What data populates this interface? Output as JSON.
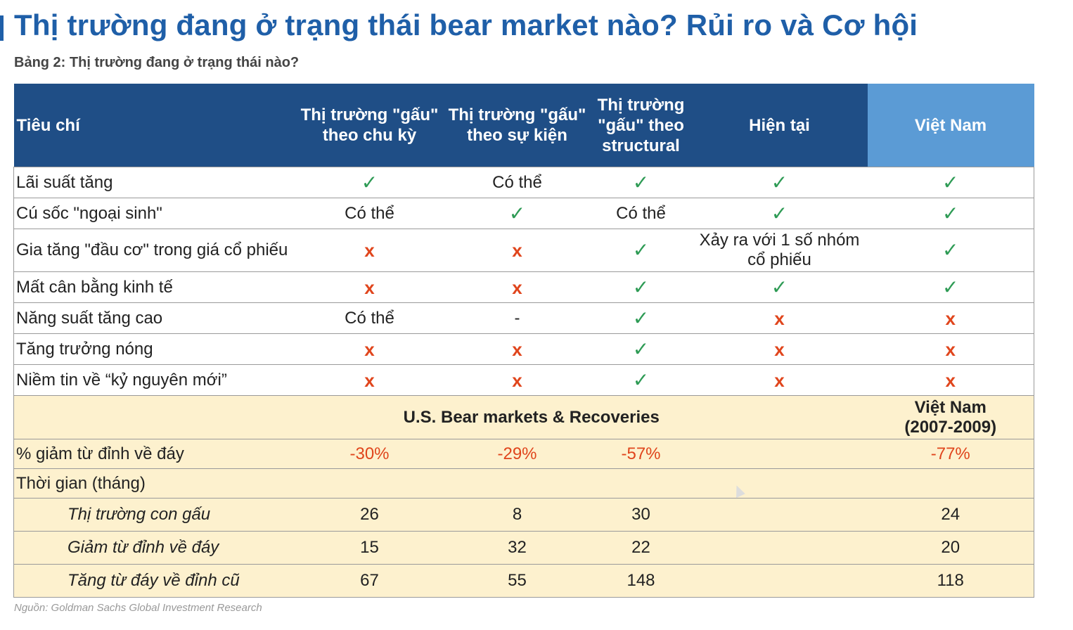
{
  "title": "Thị trường đang ở trạng thái bear market nào? Rủi ro và Cơ hội",
  "subtitle": "Bảng 2: Thị trường đang ở trạng thái nào?",
  "source": "Nguồn: Goldman Sachs Global Investment Research",
  "colors": {
    "header": "#1f4e86",
    "header_vn": "#5b9bd5",
    "check": "#2e9b55",
    "cross": "#e0451c",
    "yellow": "#fdf1ce"
  },
  "icons": {
    "check": "✓",
    "cross": "x"
  },
  "headers": {
    "criteria": "Tiêu chí",
    "cyclical": "Thị trường \"gấu\" theo chu kỳ",
    "event": "Thị trường \"gấu\" theo sự kiện",
    "structural": "Thị trường \"gấu\" theo structural",
    "current": "Hiện tại",
    "vietnam": "Việt Nam"
  },
  "rows": [
    {
      "criteria": "Lãi suất tăng",
      "cyclical": "✓",
      "event": "Có thể",
      "structural": "✓",
      "current": "✓",
      "vietnam": "✓"
    },
    {
      "criteria": "Cú sốc \"ngoại sinh\"",
      "cyclical": "Có thể",
      "event": "✓",
      "structural": "Có thể",
      "current": "✓",
      "vietnam": "✓"
    },
    {
      "criteria": "Gia tăng \"đầu cơ\" trong giá cổ phiếu",
      "cyclical": "x",
      "event": "x",
      "structural": "✓",
      "current": "Xảy ra với 1 số nhóm cổ phiếu",
      "vietnam": "✓"
    },
    {
      "criteria": "Mất cân bằng kinh tế",
      "cyclical": "x",
      "event": "x",
      "structural": "✓",
      "current": "✓",
      "vietnam": "✓"
    },
    {
      "criteria": "Năng suất tăng cao",
      "cyclical": "Có thể",
      "event": "-",
      "structural": "✓",
      "current": "x",
      "vietnam": "x"
    },
    {
      "criteria": "Tăng trưởng nóng",
      "cyclical": "x",
      "event": "x",
      "structural": "✓",
      "current": "x",
      "vietnam": "x"
    },
    {
      "criteria": "Niềm tin về “kỷ nguyên mới”",
      "cyclical": "x",
      "event": "x",
      "structural": "✓",
      "current": "x",
      "vietnam": "x"
    }
  ],
  "bear": {
    "header": "U.S. Bear markets & Recoveries",
    "vn_header_line1": "Việt Nam",
    "vn_header_line2": "(2007-2009)",
    "decline_label": "% giảm từ đỉnh về đáy",
    "decline": {
      "cyclical": "-30%",
      "event": "-29%",
      "structural": "-57%",
      "vietnam": "-77%"
    },
    "duration_label": "Thời gian (tháng)",
    "sub_rows": [
      {
        "label": "Thị trường con gấu",
        "cyclical": "26",
        "event": "8",
        "structural": "30",
        "vietnam": "24"
      },
      {
        "label": "Giảm từ đỉnh về đáy",
        "cyclical": "15",
        "event": "32",
        "structural": "22",
        "vietnam": "20"
      },
      {
        "label": "Tăng từ đáy về đỉnh cũ",
        "cyclical": "67",
        "event": "55",
        "structural": "148",
        "vietnam": "118"
      }
    ]
  }
}
